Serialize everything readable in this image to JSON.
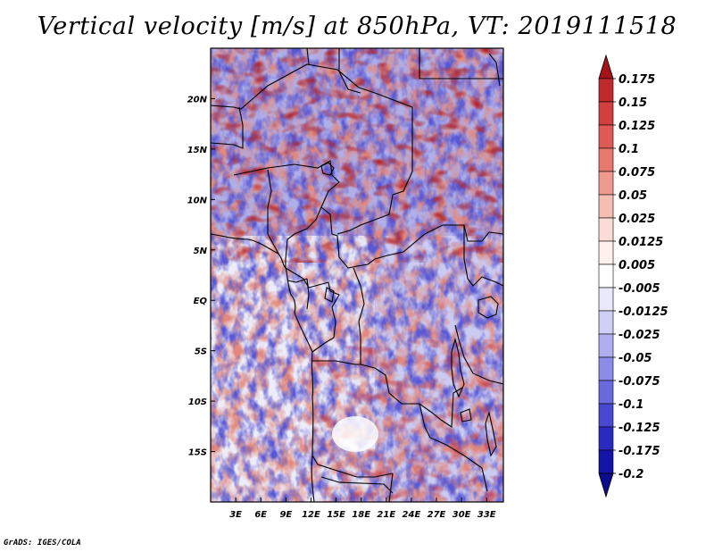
{
  "chart_data": {
    "type": "heatmap",
    "title": "Vertical velocity [m/s] at 850hPa, VT: 2019111518",
    "variable": "Vertical velocity",
    "units": "m/s",
    "level": "850hPa",
    "valid_time": "2019111518",
    "x_axis": {
      "label": "",
      "range": [
        0,
        35
      ],
      "ticks": [
        3,
        6,
        9,
        12,
        15,
        18,
        21,
        24,
        27,
        30,
        33
      ],
      "tick_labels": [
        "3E",
        "6E",
        "9E",
        "12E",
        "15E",
        "18E",
        "21E",
        "24E",
        "27E",
        "30E",
        "33E"
      ]
    },
    "y_axis": {
      "label": "",
      "range": [
        -20,
        25
      ],
      "ticks": [
        20,
        15,
        10,
        5,
        0,
        -5,
        -10,
        -15
      ],
      "tick_labels": [
        "20N",
        "15N",
        "10N",
        "5N",
        "EQ",
        "5S",
        "10S",
        "15S"
      ]
    },
    "colorbar": {
      "orientation": "vertical",
      "placement": "right",
      "levels": [
        "0.175",
        "0.15",
        "0.125",
        "0.1",
        "0.075",
        "0.05",
        "0.025",
        "0.0125",
        "0.005",
        "-0.005",
        "-0.0125",
        "-0.025",
        "-0.05",
        "-0.075",
        "-0.1",
        "-0.125",
        "-0.175",
        "-0.2"
      ],
      "colors": [
        "#a41419",
        "#c12a2c",
        "#d2403e",
        "#de5a55",
        "#e8796f",
        "#f09a8f",
        "#f6bdb3",
        "#fbdcd6",
        "#fff0ee",
        "#ffffff",
        "#e9e9fb",
        "#cfcff7",
        "#aeaef1",
        "#8c8ce8",
        "#6a6ade",
        "#4848d0",
        "#2a2ac0",
        "#1414a8",
        "#0c0c8c"
      ]
    },
    "features": [
      "continental outlines",
      "country borders",
      "lake shorelines"
    ]
  },
  "credit": "GrADS: IGES/COLA"
}
